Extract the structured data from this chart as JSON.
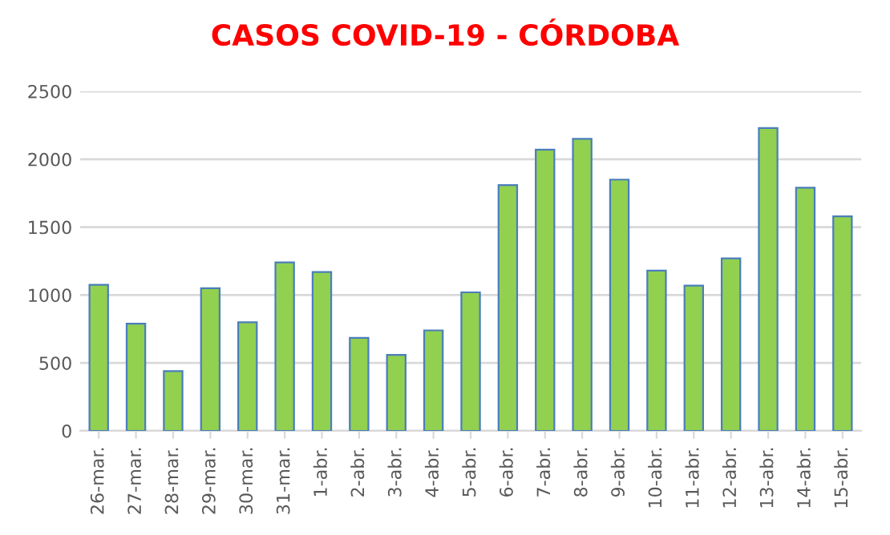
{
  "chart_data": {
    "type": "bar",
    "title": "CASOS COVID-19 - CÓRDOBA",
    "categories": [
      "26-mar.",
      "27-mar.",
      "28-mar.",
      "29-mar.",
      "30-mar.",
      "31-mar.",
      "1-abr.",
      "2-abr.",
      "3-abr.",
      "4-abr.",
      "5-abr.",
      "6-abr.",
      "7-abr.",
      "8-abr.",
      "9-abr.",
      "10-abr.",
      "11-abr.",
      "12-abr.",
      "13-abr.",
      "14-abr.",
      "15-abr."
    ],
    "values": [
      1075,
      790,
      440,
      1050,
      800,
      1240,
      1170,
      685,
      560,
      740,
      1020,
      1810,
      2070,
      2150,
      1850,
      1180,
      1070,
      1270,
      2230,
      1790,
      1580
    ],
    "color": "#92d050",
    "ylim": [
      0,
      2500
    ],
    "yticks": [
      0,
      500,
      1000,
      1500,
      2000,
      2500
    ],
    "grid": "y"
  }
}
